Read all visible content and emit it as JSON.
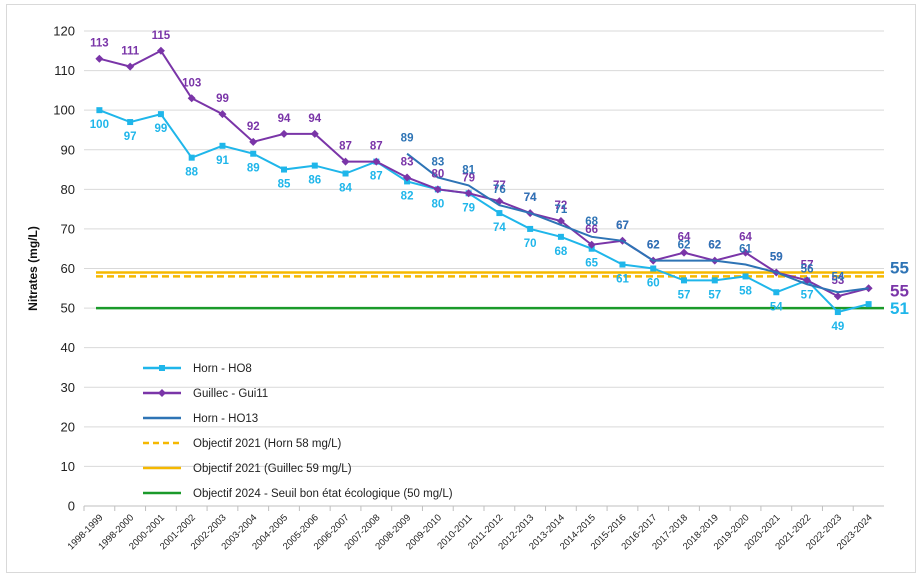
{
  "chart_data": {
    "type": "line",
    "ylabel": "Nitrates (mg/L)",
    "ylim": [
      0,
      120
    ],
    "yticks": [
      0,
      10,
      20,
      30,
      40,
      50,
      60,
      70,
      80,
      90,
      100,
      110,
      120
    ],
    "grid": true,
    "legend_position": "bottom-left (inside plot)",
    "categories": [
      "1998-1999",
      "1998-2000",
      "2000-2001",
      "2001-2002",
      "2002-2003",
      "2003-2004",
      "2004-2005",
      "2005-2006",
      "2006-2007",
      "2007-2008",
      "2008-2009",
      "2009-2010",
      "2010-2011",
      "2011-2012",
      "2012-2013",
      "2013-2014",
      "2014-2015",
      "2015-2016",
      "2016-2017",
      "2017-2018",
      "2018-2019",
      "2019-2020",
      "2020-2021",
      "2021-2022",
      "2022-2023",
      "2023-2024"
    ],
    "series": [
      {
        "name": "Horn - HO8",
        "color": "#1fb6ea",
        "marker": "square",
        "values": [
          100,
          97,
          99,
          88,
          91,
          89,
          85,
          86,
          84,
          87,
          82,
          80,
          79,
          74,
          70,
          68,
          65,
          61,
          60,
          57,
          57,
          58,
          54,
          57,
          49,
          51
        ],
        "end_label": "51"
      },
      {
        "name": "Guillec - Gui11",
        "color": "#7a35a8",
        "marker": "diamond",
        "values": [
          113,
          111,
          115,
          103,
          99,
          92,
          94,
          94,
          87,
          87,
          83,
          80,
          79,
          77,
          74,
          72,
          66,
          67,
          62,
          64,
          62,
          64,
          59,
          57,
          53,
          55
        ],
        "end_label": "55"
      },
      {
        "name": "Horn - HO13",
        "color": "#2e74b5",
        "marker": "none",
        "values": [
          null,
          null,
          null,
          null,
          null,
          null,
          null,
          null,
          null,
          null,
          89,
          83,
          81,
          76,
          74,
          71,
          68,
          67,
          62,
          62,
          62,
          61,
          59,
          56,
          54,
          55
        ],
        "end_label": "55"
      }
    ],
    "reference_lines": [
      {
        "name": "Objectif 2021 (Horn 58 mg/L)",
        "value": 58,
        "color": "#f5b800",
        "style": "dashed"
      },
      {
        "name": "Objectif 2021 (Guillec 59 mg/L)",
        "value": 59,
        "color": "#f5b800",
        "style": "solid"
      },
      {
        "name": "Objectif 2024 - Seuil bon état écologique (50 mg/L)",
        "value": 50,
        "color": "#1a9a2a",
        "style": "solid"
      }
    ]
  }
}
